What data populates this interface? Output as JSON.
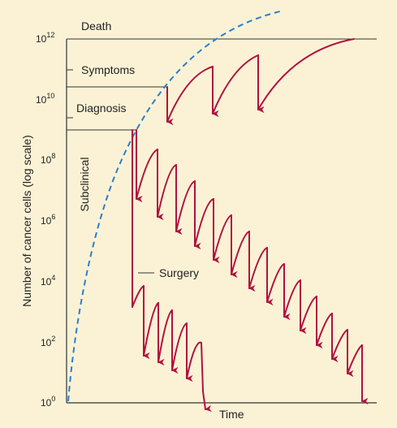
{
  "diagram": {
    "y_axis_label": "Number of cancer cells (log scale)",
    "x_axis_label": "Time",
    "y_ticks": [
      {
        "base": "10",
        "exp": "0"
      },
      {
        "base": "10",
        "exp": "2"
      },
      {
        "base": "10",
        "exp": "4"
      },
      {
        "base": "10",
        "exp": "6"
      },
      {
        "base": "10",
        "exp": "8"
      },
      {
        "base": "10",
        "exp": "10"
      },
      {
        "base": "10",
        "exp": "12"
      }
    ],
    "thresholds": {
      "death": "Death",
      "symptoms": "Symptoms",
      "diagnosis": "Diagnosis",
      "subclinical": "Subclinical"
    },
    "surgery_label": "Surgery",
    "colors": {
      "background": "#fbf2d5",
      "growth_curve": "#2a7fd0",
      "treatment": "#b0123f",
      "axis": "#333333"
    }
  }
}
